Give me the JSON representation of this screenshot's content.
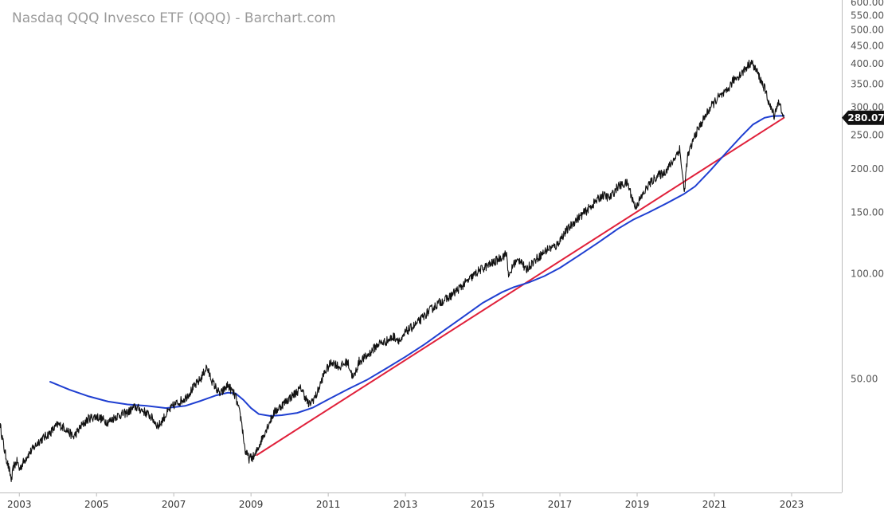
{
  "chart_data": {
    "type": "line",
    "title": "Nasdaq QQQ Invesco ETF (QQQ) - Barchart.com",
    "y_scale": "log",
    "ylim": [
      25,
      600
    ],
    "xlim": [
      2002.5,
      2024.3
    ],
    "y_ticks": [
      "600.00",
      "550.00",
      "500.00",
      "450.00",
      "400.00",
      "350.00",
      "300.00",
      "250.00",
      "200.00",
      "150.00",
      "100.00",
      "50.00"
    ],
    "x_ticks": [
      "2003",
      "2005",
      "2007",
      "2009",
      "2011",
      "2013",
      "2015",
      "2017",
      "2019",
      "2021",
      "2023"
    ],
    "last_value_label": "280.07",
    "grid": false,
    "colors": {
      "price": "#111111",
      "moving_average": "#1f3fd1",
      "trendline": "#e0203a",
      "last_badge": "#111111",
      "axis": "#bbbbbb"
    },
    "series": [
      {
        "role": "price",
        "x": [
          2002.5,
          2002.62,
          2002.75,
          2002.8,
          2002.85,
          2002.95,
          2003.0,
          2003.2,
          2003.5,
          2003.8,
          2004.0,
          2004.2,
          2004.4,
          2004.6,
          2004.8,
          2005.0,
          2005.3,
          2005.5,
          2005.8,
          2006.0,
          2006.2,
          2006.4,
          2006.6,
          2006.8,
          2007.0,
          2007.3,
          2007.5,
          2007.7,
          2007.85,
          2008.0,
          2008.2,
          2008.4,
          2008.6,
          2008.75,
          2008.85,
          2008.95,
          2009.1,
          2009.2,
          2009.4,
          2009.6,
          2009.8,
          2010.0,
          2010.3,
          2010.5,
          2010.7,
          2010.9,
          2011.1,
          2011.3,
          2011.5,
          2011.65,
          2011.8,
          2012.0,
          2012.3,
          2012.5,
          2012.7,
          2012.9,
          2013.0,
          2013.3,
          2013.6,
          2013.9,
          2014.1,
          2014.3,
          2014.6,
          2014.9,
          2015.1,
          2015.3,
          2015.5,
          2015.62,
          2015.68,
          2015.8,
          2016.0,
          2016.1,
          2016.3,
          2016.5,
          2016.7,
          2016.9,
          2017.1,
          2017.4,
          2017.7,
          2017.9,
          2018.1,
          2018.3,
          2018.5,
          2018.75,
          2018.95,
          2019.1,
          2019.3,
          2019.5,
          2019.7,
          2019.9,
          2020.1,
          2020.18,
          2020.22,
          2020.3,
          2020.5,
          2020.7,
          2020.9,
          2021.1,
          2021.3,
          2021.5,
          2021.7,
          2021.95,
          2022.1,
          2022.3,
          2022.45,
          2022.55,
          2022.65,
          2022.75,
          2022.8
        ],
        "values": [
          37,
          31,
          27,
          25.5,
          28,
          29,
          27.5,
          30,
          33,
          35,
          37,
          36,
          34,
          36.5,
          38.5,
          39,
          37.5,
          39,
          40,
          41.5,
          40.5,
          39,
          36.5,
          39.5,
          42,
          44,
          47,
          50,
          54,
          49,
          45,
          48,
          44.5,
          38,
          31,
          29.5,
          30,
          32,
          36,
          40,
          42,
          44,
          47,
          42,
          45,
          52,
          56,
          54,
          56,
          50,
          56,
          58,
          63,
          64,
          66,
          64,
          68,
          72,
          78,
          83,
          85,
          89,
          95,
          102,
          105,
          108,
          112,
          114,
          97,
          107,
          110,
          102,
          108,
          113,
          118,
          120,
          130,
          142,
          152,
          160,
          168,
          165,
          178,
          182,
          155,
          165,
          180,
          190,
          195,
          208,
          228,
          190,
          170,
          215,
          250,
          275,
          300,
          320,
          330,
          360,
          375,
          405,
          380,
          340,
          300,
          285,
          310,
          295,
          280.07
        ]
      },
      {
        "role": "moving_average",
        "x": [
          2003.8,
          2004.3,
          2004.8,
          2005.3,
          2005.8,
          2006.3,
          2006.8,
          2007.3,
          2007.7,
          2008.1,
          2008.4,
          2008.6,
          2008.8,
          2009.0,
          2009.2,
          2009.5,
          2009.8,
          2010.2,
          2010.6,
          2011.0,
          2011.5,
          2012.0,
          2012.5,
          2013.0,
          2013.5,
          2014.0,
          2014.5,
          2015.0,
          2015.5,
          2015.8,
          2016.2,
          2016.6,
          2017.0,
          2017.5,
          2018.0,
          2018.5,
          2018.9,
          2019.3,
          2019.8,
          2020.2,
          2020.5,
          2020.9,
          2021.3,
          2021.7,
          2022.0,
          2022.3,
          2022.5,
          2022.8
        ],
        "values": [
          49,
          46.5,
          44.5,
          43,
          42.2,
          41.8,
          41.2,
          41.8,
          43.2,
          44.8,
          45.6,
          45.4,
          43.5,
          41.2,
          39.6,
          39.1,
          39.3,
          39.9,
          41.3,
          43.6,
          46.6,
          49.6,
          53.5,
          57.8,
          62.8,
          68.8,
          75.3,
          82.5,
          88.5,
          91.5,
          94.5,
          98.5,
          104,
          113,
          123,
          134.5,
          143,
          150,
          160,
          169,
          178,
          198,
          222,
          248,
          268,
          280,
          283,
          284
        ]
      },
      {
        "role": "trendline",
        "x": [
          2009.15,
          2022.8
        ],
        "values": [
          30.2,
          280.07
        ]
      }
    ]
  }
}
